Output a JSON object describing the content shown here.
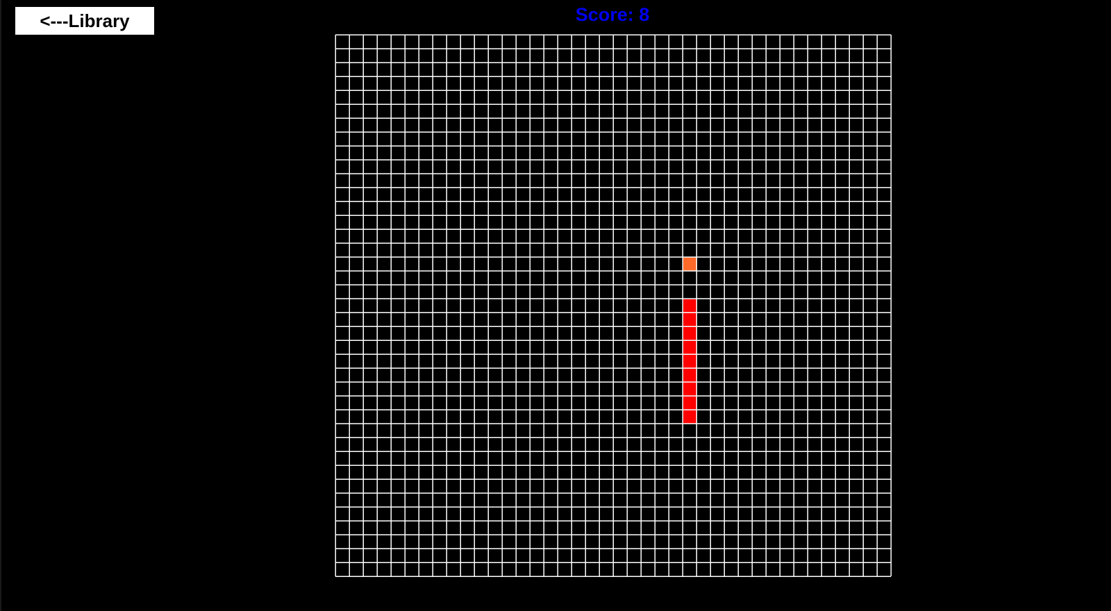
{
  "nav": {
    "back_label": "<---Library"
  },
  "score": {
    "text": "Score: 8",
    "value": 8
  },
  "board": {
    "columns": 40,
    "rows": 39,
    "background": "#000000",
    "grid_color": "#ffffff",
    "snake_color": "#ff0000",
    "food_color": "#ff6a2a",
    "food": {
      "col": 25,
      "row": 16
    },
    "snake": [
      {
        "col": 25,
        "row": 19
      },
      {
        "col": 25,
        "row": 20
      },
      {
        "col": 25,
        "row": 21
      },
      {
        "col": 25,
        "row": 22
      },
      {
        "col": 25,
        "row": 23
      },
      {
        "col": 25,
        "row": 24
      },
      {
        "col": 25,
        "row": 25
      },
      {
        "col": 25,
        "row": 26
      },
      {
        "col": 25,
        "row": 27
      }
    ]
  }
}
